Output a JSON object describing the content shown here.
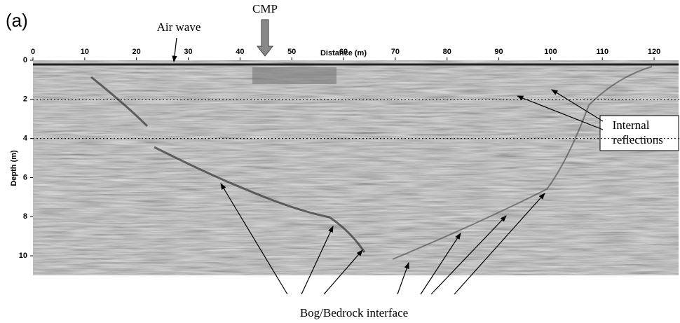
{
  "chart_data": {
    "type": "radargram",
    "panel_label": "(a)",
    "x_label": "Distance (m)",
    "y_label": "Depth (m)",
    "xlim": [
      0,
      125
    ],
    "xticks": [
      0,
      10,
      20,
      30,
      40,
      50,
      60,
      70,
      80,
      90,
      100,
      110,
      120
    ],
    "ylim": [
      0,
      11
    ],
    "yticks": [
      0,
      2,
      4,
      6,
      8,
      10
    ],
    "inverted_y": true,
    "reference_lines": [
      2,
      4
    ],
    "annotations": {
      "cmp": "CMP",
      "air_wave": "Air wave",
      "internal_reflections": [
        "Internal",
        "reflections"
      ],
      "interface": "Bog/Bedrock interface"
    }
  }
}
